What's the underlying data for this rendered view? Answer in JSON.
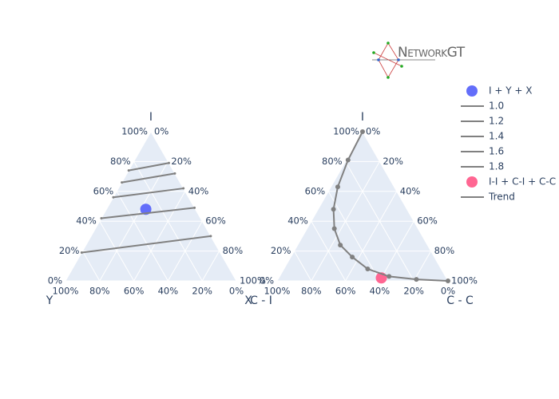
{
  "logo": "NetworkGT",
  "chart_data": [
    {
      "type": "ternary",
      "aaxis": {
        "title": "I",
        "ticks": [
          {
            "value": 0,
            "label": "0%"
          },
          {
            "value": 20,
            "label": "20%"
          },
          {
            "value": 40,
            "label": "40%"
          },
          {
            "value": 60,
            "label": "60%"
          },
          {
            "value": 80,
            "label": "80%"
          },
          {
            "value": 100,
            "label": "100%"
          }
        ]
      },
      "baxis": {
        "title": "Y",
        "ticks": [
          {
            "value": 0,
            "label": "0%"
          },
          {
            "value": 20,
            "label": "20%"
          },
          {
            "value": 40,
            "label": "40%"
          },
          {
            "value": 60,
            "label": "60%"
          },
          {
            "value": 80,
            "label": "80%"
          },
          {
            "value": 100,
            "label": "100%"
          }
        ]
      },
      "caxis": {
        "title": "X",
        "ticks": [
          {
            "value": 0,
            "label": "0%"
          },
          {
            "value": 20,
            "label": "20%"
          },
          {
            "value": 40,
            "label": "40%"
          },
          {
            "value": 60,
            "label": "60%"
          },
          {
            "value": 80,
            "label": "80%"
          },
          {
            "value": 100,
            "label": "100%"
          }
        ]
      },
      "series": [
        {
          "name": "I + Y + X",
          "color": "#636efa",
          "mode": "markers",
          "a": [
            48
          ],
          "b": [
            29
          ],
          "c": [
            23
          ]
        },
        {
          "name": "1.0",
          "color": "#808080",
          "mode": "lines",
          "a": [
            19,
            30
          ],
          "b": [
            81,
            0
          ],
          "c": [
            0,
            70
          ]
        },
        {
          "name": "1.2",
          "color": "#808080",
          "mode": "lines",
          "a": [
            42,
            49
          ],
          "b": [
            58,
            0
          ],
          "c": [
            0,
            51
          ]
        },
        {
          "name": "1.4",
          "color": "#808080",
          "mode": "lines",
          "a": [
            56,
            62
          ],
          "b": [
            44,
            0
          ],
          "c": [
            0,
            38
          ]
        },
        {
          "name": "1.6",
          "color": "#808080",
          "mode": "lines",
          "a": [
            66,
            72
          ],
          "b": [
            34,
            0
          ],
          "c": [
            0,
            28
          ]
        },
        {
          "name": "1.8",
          "color": "#808080",
          "mode": "lines",
          "a": [
            74,
            79
          ],
          "b": [
            26,
            0
          ],
          "c": [
            0,
            21
          ]
        }
      ]
    },
    {
      "type": "ternary",
      "aaxis": {
        "title": "I",
        "ticks": [
          {
            "value": 0,
            "label": "0%"
          },
          {
            "value": 20,
            "label": "20%"
          },
          {
            "value": 40,
            "label": "40%"
          },
          {
            "value": 60,
            "label": "60%"
          },
          {
            "value": 80,
            "label": "80%"
          },
          {
            "value": 100,
            "label": "100%"
          }
        ]
      },
      "baxis": {
        "title": "C - I",
        "ticks": [
          {
            "value": 0,
            "label": "0%"
          },
          {
            "value": 20,
            "label": "20%"
          },
          {
            "value": 40,
            "label": "40%"
          },
          {
            "value": 60,
            "label": "60%"
          },
          {
            "value": 80,
            "label": "80%"
          },
          {
            "value": 100,
            "label": "100%"
          }
        ]
      },
      "caxis": {
        "title": "C - C",
        "ticks": [
          {
            "value": 0,
            "label": "0%"
          },
          {
            "value": 20,
            "label": "20%"
          },
          {
            "value": 40,
            "label": "40%"
          },
          {
            "value": 60,
            "label": "60%"
          },
          {
            "value": 80,
            "label": "80%"
          },
          {
            "value": 100,
            "label": "100%"
          }
        ]
      },
      "series": [
        {
          "name": "I-I + C-I + C-C",
          "color": "#ff6692",
          "mode": "markers",
          "a": [
            2
          ],
          "b": [
            38
          ],
          "c": [
            60
          ]
        },
        {
          "name": "Trend",
          "color": "#808080",
          "mode": "lines+markers",
          "a": [
            100,
            81,
            63,
            48,
            35,
            24,
            16,
            8,
            3,
            1,
            0
          ],
          "b": [
            0,
            18,
            33,
            43,
            49,
            51,
            48,
            43,
            33,
            18,
            0
          ],
          "c": [
            0,
            1,
            4,
            9,
            16,
            25,
            36,
            49,
            64,
            81,
            100
          ]
        }
      ]
    }
  ]
}
